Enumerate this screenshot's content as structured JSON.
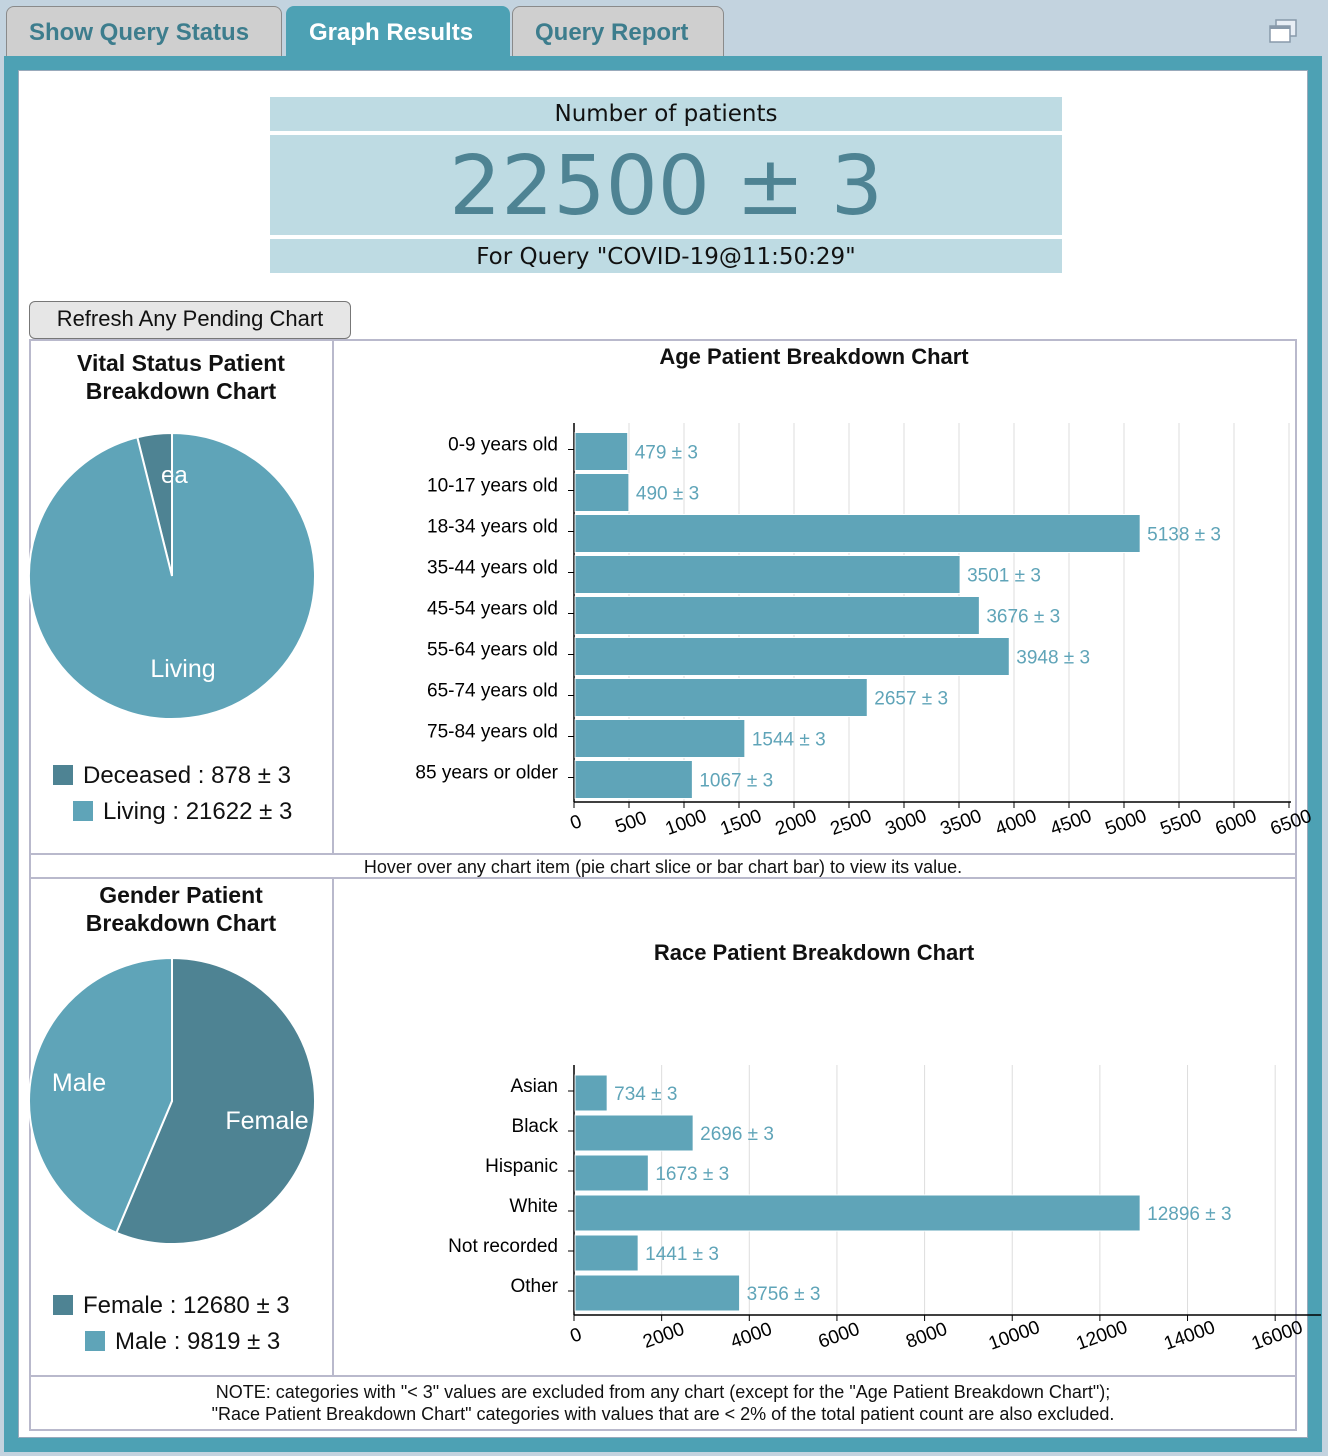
{
  "tabs": [
    {
      "label": "Show Query Status",
      "active": false
    },
    {
      "label": "Graph Results",
      "active": true
    },
    {
      "label": "Query Report",
      "active": false
    }
  ],
  "header": {
    "title": "Number of patients",
    "count": "22500 ± 3",
    "query": "For Query \"COVID-19@11:50:29\""
  },
  "refresh_label": "Refresh Any Pending Chart",
  "hover_note": "Hover over any chart item (pie chart slice or bar chart bar) to view its value.",
  "footer_note": [
    "NOTE: categories with \"< 3\" values are excluded from any chart (except for the \"Age Patient Breakdown Chart\");",
    "\"Race Patient Breakdown Chart\" categories with values that are < 2% of the total patient count are also excluded."
  ],
  "colors": {
    "bar": "#5fa4b8",
    "dark": "#4e8393",
    "label": "#5fa4b8"
  },
  "chart_data": [
    {
      "type": "pie",
      "title": "Vital Status Patient Breakdown Chart",
      "title_lines": [
        "Vital Status Patient",
        "Breakdown Chart"
      ],
      "slices": [
        {
          "label": "Deceased",
          "value": 878,
          "display": "Deceased : 878 ± 3",
          "slice_text": "ea",
          "color": "#4e8393"
        },
        {
          "label": "Living",
          "value": 21622,
          "display": "Living : 21622 ± 3",
          "slice_text": "Living",
          "color": "#5fa4b8"
        }
      ]
    },
    {
      "type": "bar",
      "orientation": "horizontal",
      "title": "Age Patient Breakdown Chart",
      "categories": [
        "0-9 years old",
        "10-17 years old",
        "18-34 years old",
        "35-44 years old",
        "45-54 years old",
        "55-64 years old",
        "65-74 years old",
        "75-84 years old",
        "85 years or older"
      ],
      "values": [
        479,
        490,
        5138,
        3501,
        3676,
        3948,
        2657,
        1544,
        1067
      ],
      "labels": [
        "479 ± 3",
        "490 ± 3",
        "5138 ± 3",
        "3501 ± 3",
        "3676 ± 3",
        "3948 ± 3",
        "2657 ± 3",
        "1544 ± 3",
        "1067 ± 3"
      ],
      "xlim": [
        0,
        6500
      ],
      "ticks": [
        "0",
        "500",
        "1000",
        "1500",
        "2000",
        "2500",
        "3000",
        "3500",
        "4000",
        "4500",
        "5000",
        "5500",
        "6000",
        "6500"
      ],
      "grid": true
    },
    {
      "type": "pie",
      "title": "Gender Patient Breakdown Chart",
      "title_lines": [
        "Gender Patient",
        "Breakdown Chart"
      ],
      "slices": [
        {
          "label": "Female",
          "value": 12680,
          "display": "Female : 12680 ± 3",
          "slice_text": "Female",
          "color": "#4e8393"
        },
        {
          "label": "Male",
          "value": 9819,
          "display": "Male : 9819 ± 3",
          "slice_text": "Male",
          "color": "#5fa4b8"
        }
      ]
    },
    {
      "type": "bar",
      "orientation": "horizontal",
      "title": "Race Patient Breakdown Chart",
      "categories": [
        "Asian",
        "Black",
        "Hispanic",
        "White",
        "Not recorded",
        "Other"
      ],
      "values": [
        734,
        2696,
        1673,
        12896,
        1441,
        3756
      ],
      "labels": [
        "734 ± 3",
        "2696 ± 3",
        "1673 ± 3",
        "12896 ± 3",
        "1441 ± 3",
        "3756 ± 3"
      ],
      "xlim": [
        0,
        17000
      ],
      "ticks": [
        "0",
        "2000",
        "4000",
        "6000",
        "8000",
        "10000",
        "12000",
        "14000",
        "16000"
      ],
      "grid": true
    }
  ]
}
